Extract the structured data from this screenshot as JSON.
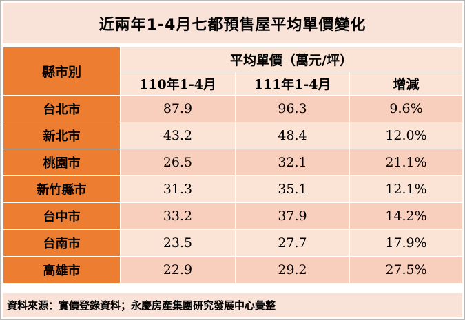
{
  "title": "近兩年1-4月七都預售屋平均單價變化",
  "table": {
    "name_header": "縣市別",
    "group_header": "平均單價（萬元/坪）",
    "columns": [
      "110年1-4月",
      "111年1-4月",
      "增減"
    ],
    "rows": [
      {
        "city": "台北市",
        "y110": "87.9",
        "y111": "96.3",
        "change": "9.6%"
      },
      {
        "city": "新北市",
        "y110": "43.2",
        "y111": "48.4",
        "change": "12.0%"
      },
      {
        "city": "桃園市",
        "y110": "26.5",
        "y111": "32.1",
        "change": "21.1%"
      },
      {
        "city": "新竹縣市",
        "y110": "31.3",
        "y111": "35.1",
        "change": "12.1%"
      },
      {
        "city": "台中市",
        "y110": "33.2",
        "y111": "37.9",
        "change": "14.2%"
      },
      {
        "city": "台南市",
        "y110": "23.5",
        "y111": "27.7",
        "change": "17.9%"
      },
      {
        "city": "高雄市",
        "y110": "22.9",
        "y111": "29.2",
        "change": "27.5%"
      }
    ]
  },
  "source": "資料來源：實價登錄資料；永慶房產集團研究發展中心彙整",
  "colors": {
    "header_orange": "#ed7d31",
    "row_dark": "#f8cfbc",
    "row_light": "#fbe4d6",
    "title_bg": "#f9e2d8"
  }
}
